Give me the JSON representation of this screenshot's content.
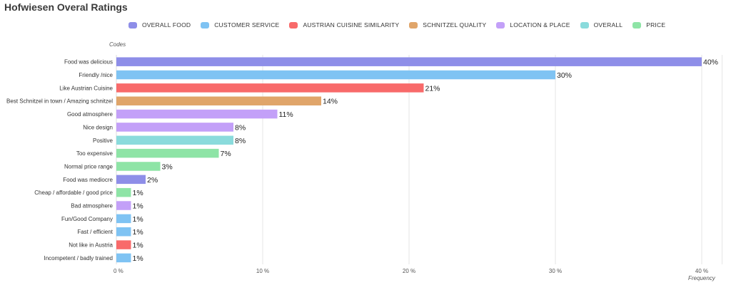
{
  "chart_data": {
    "type": "bar",
    "orientation": "horizontal",
    "title": "Hofwiesen Overal Ratings",
    "ylabel": "Codes",
    "xlabel": "Frequency",
    "xlim": [
      0,
      41
    ],
    "x_ticks": [
      0,
      10,
      20,
      30,
      40
    ],
    "x_tick_labels": [
      "0 %",
      "10 %",
      "20 %",
      "30 %",
      "40 %"
    ],
    "grid": true,
    "legend_position": "top",
    "categories_legend": [
      {
        "name": "OVERALL FOOD",
        "color": "#8e8ee8"
      },
      {
        "name": "CUSTOMER SERVICE",
        "color": "#7fc3f3"
      },
      {
        "name": "AUSTRIAN CUISINE SIMILARITY",
        "color": "#f86a6a"
      },
      {
        "name": "SCHNITZEL QUALITY",
        "color": "#e0a56a"
      },
      {
        "name": "LOCATION & PLACE",
        "color": "#c3a0f8"
      },
      {
        "name": "OVERALL",
        "color": "#8adbdc"
      },
      {
        "name": "PRICE",
        "color": "#8ee4a6"
      }
    ],
    "bars": [
      {
        "label": "Food was delicious",
        "value": 40,
        "value_label": "40%",
        "group": "OVERALL FOOD"
      },
      {
        "label": "Friendly /nice",
        "value": 30,
        "value_label": "30%",
        "group": "CUSTOMER SERVICE"
      },
      {
        "label": "Like Austrian Cuisine",
        "value": 21,
        "value_label": "21%",
        "group": "AUSTRIAN CUISINE SIMILARITY"
      },
      {
        "label": "Best Schnitzel in town / Amazing schnitzel",
        "value": 14,
        "value_label": "14%",
        "group": "SCHNITZEL QUALITY"
      },
      {
        "label": "Good atmosphere",
        "value": 11,
        "value_label": "11%",
        "group": "LOCATION & PLACE"
      },
      {
        "label": "Nice design",
        "value": 8,
        "value_label": "8%",
        "group": "LOCATION & PLACE"
      },
      {
        "label": "Positive",
        "value": 8,
        "value_label": "8%",
        "group": "OVERALL"
      },
      {
        "label": "Too expensive",
        "value": 7,
        "value_label": "7%",
        "group": "PRICE"
      },
      {
        "label": "Normal price range",
        "value": 3,
        "value_label": "3%",
        "group": "PRICE"
      },
      {
        "label": "Food was mediocre",
        "value": 2,
        "value_label": "2%",
        "group": "OVERALL FOOD"
      },
      {
        "label": "Cheap / affordable / good price",
        "value": 1,
        "value_label": "1%",
        "group": "PRICE"
      },
      {
        "label": "Bad atmosphere",
        "value": 1,
        "value_label": "1%",
        "group": "LOCATION & PLACE"
      },
      {
        "label": "Fun/Good Company",
        "value": 1,
        "value_label": "1%",
        "group": "CUSTOMER SERVICE"
      },
      {
        "label": "Fast / efficient",
        "value": 1,
        "value_label": "1%",
        "group": "CUSTOMER SERVICE"
      },
      {
        "label": "Not like in Austria",
        "value": 1,
        "value_label": "1%",
        "group": "AUSTRIAN CUISINE SIMILARITY"
      },
      {
        "label": "Incompetent / badly trained",
        "value": 1,
        "value_label": "1%",
        "group": "CUSTOMER SERVICE"
      }
    ]
  }
}
